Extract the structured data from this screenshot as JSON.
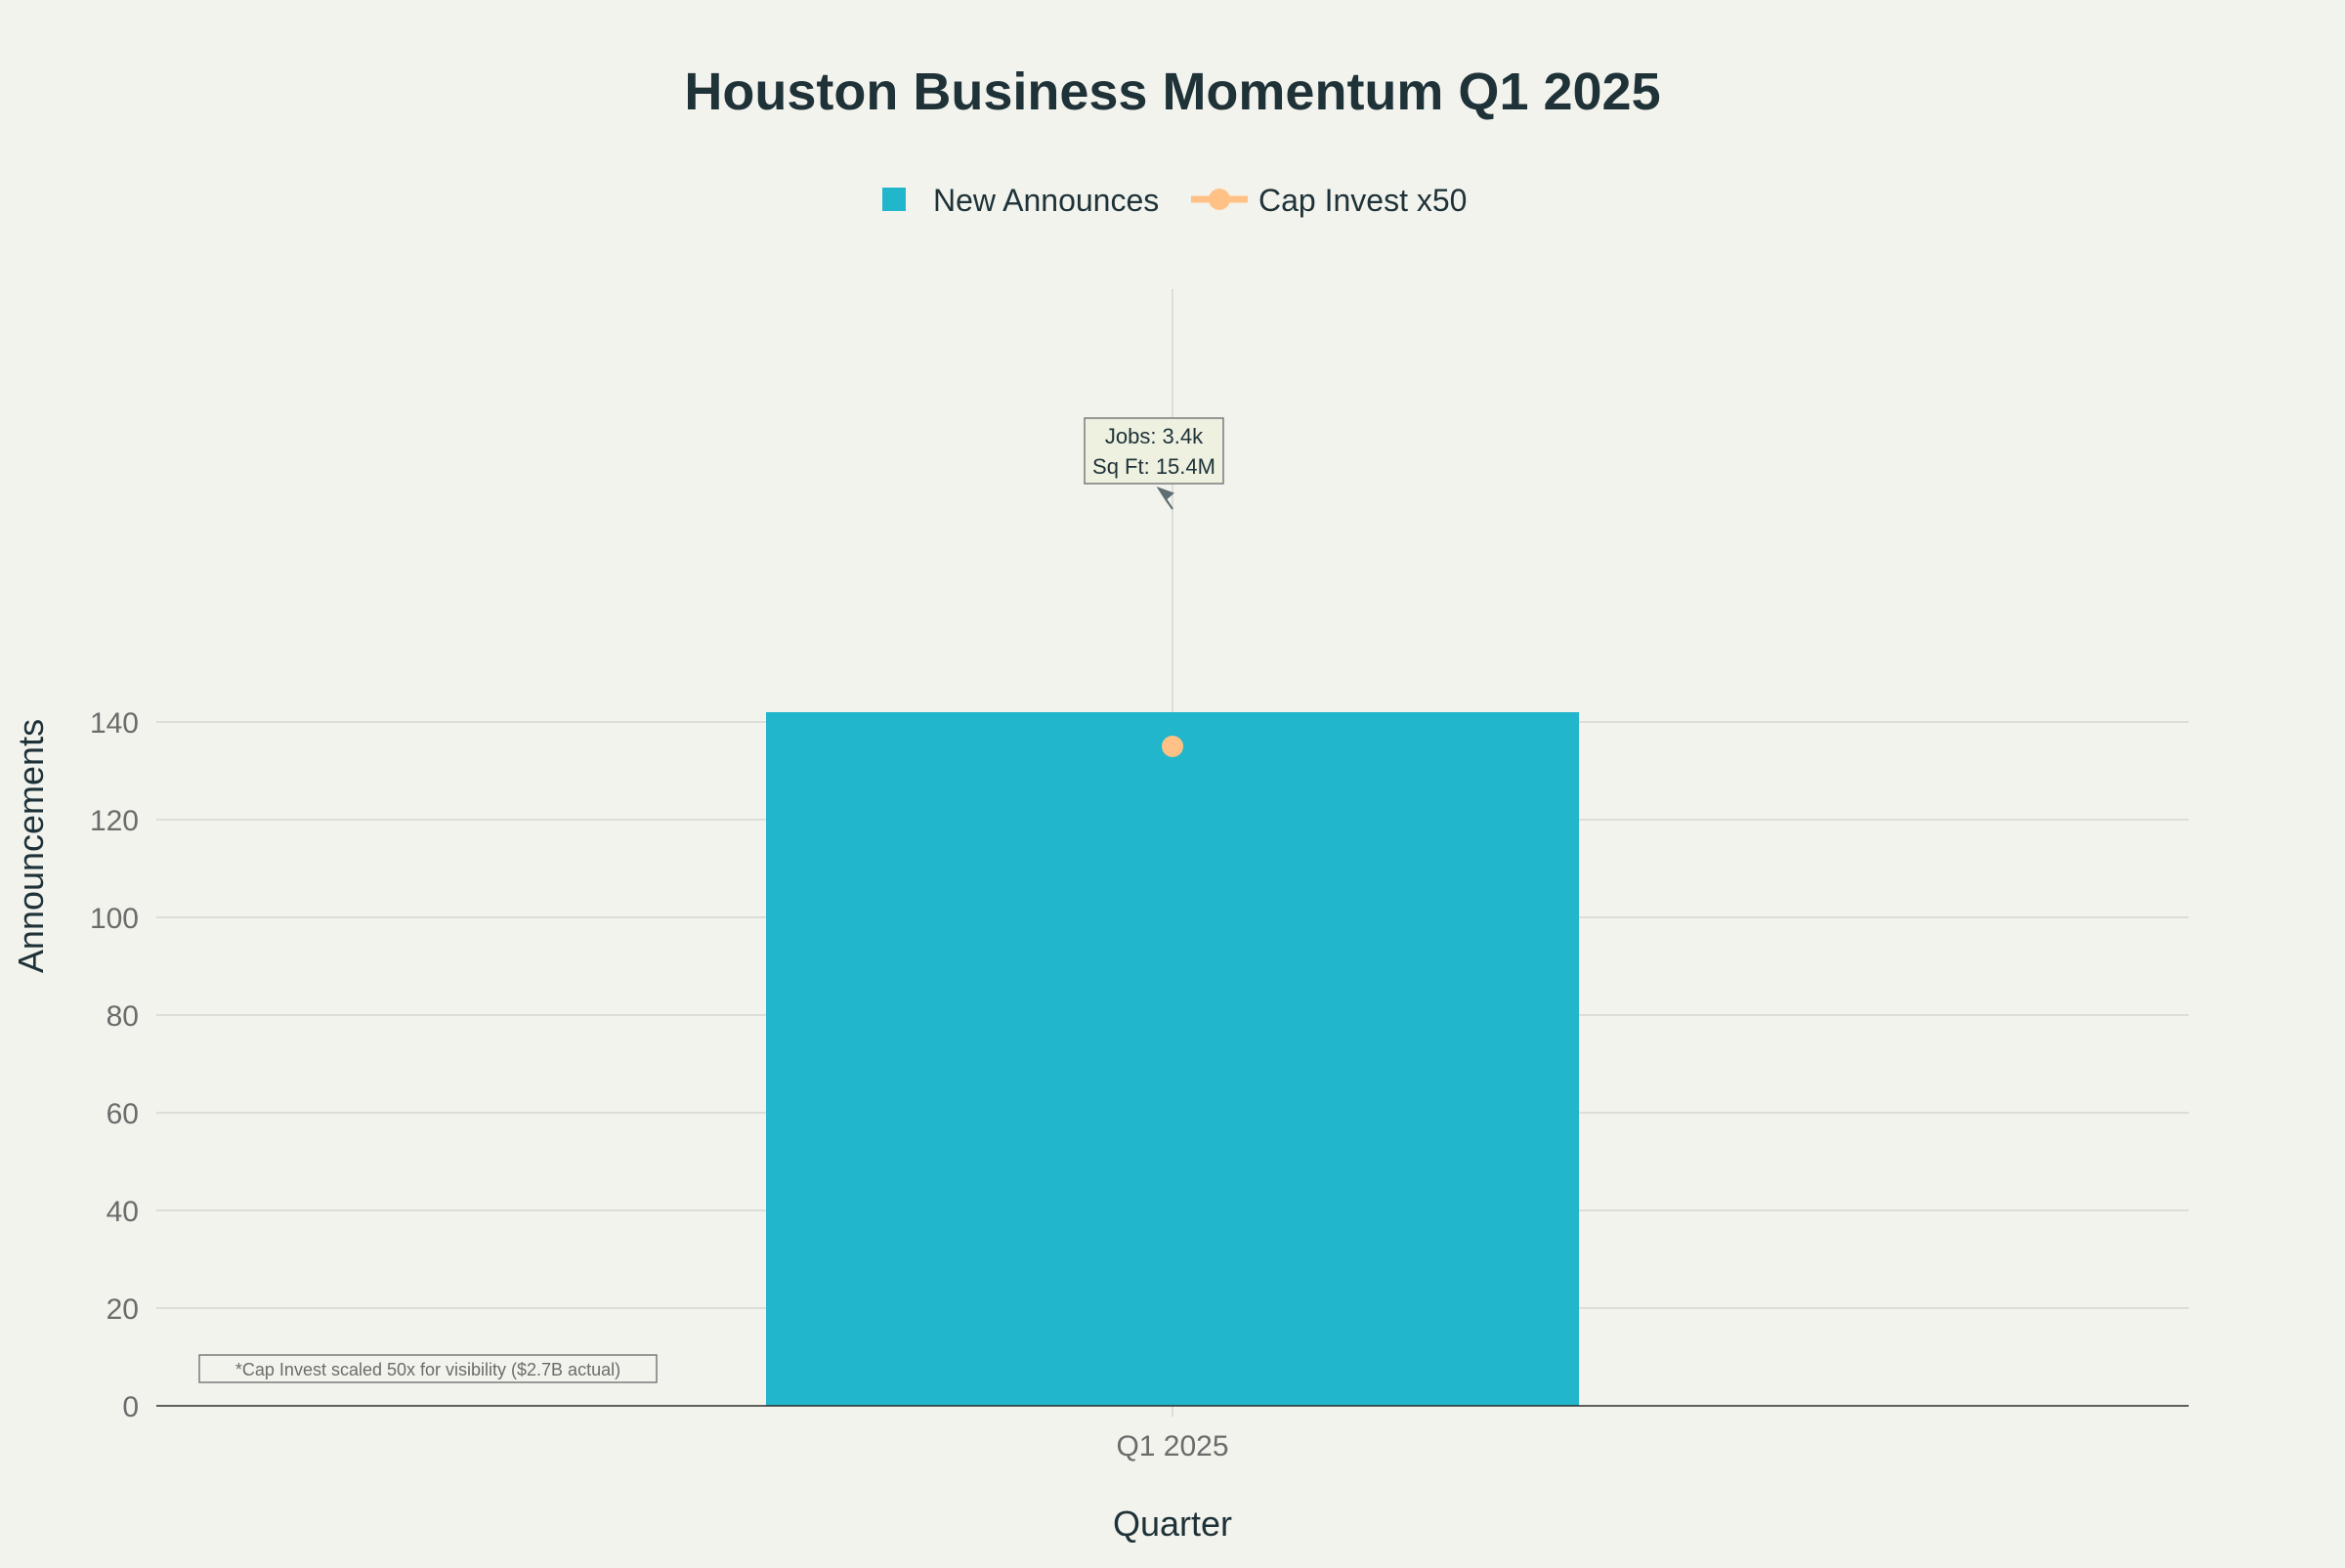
{
  "chart_data": {
    "type": "bar",
    "title": "Houston Business Momentum Q1 2025",
    "xlabel": "Quarter",
    "ylabel": "Announcements",
    "categories": [
      "Q1 2025"
    ],
    "ylim": [
      0,
      150
    ],
    "yticks": [
      0,
      20,
      40,
      60,
      80,
      100,
      120,
      140
    ],
    "grid": true,
    "legend_position": "top-center",
    "series": [
      {
        "name": "New Announces",
        "type": "bar",
        "values": [
          142
        ],
        "color": "#21b6cb"
      },
      {
        "name": "Cap Invest x50",
        "type": "line+markers",
        "values": [
          135
        ],
        "color": "#ffc185"
      }
    ],
    "annotations": [
      {
        "text_lines": [
          "Jobs: 3.4k",
          "Sq Ft: 15.4M"
        ],
        "x": "Q1 2025",
        "y": 120,
        "arrow": true
      }
    ],
    "footnote": "*Cap Invest scaled 50x for visibility ($2.7B actual)"
  },
  "colors": {
    "background": "#f3f3ee",
    "grid": "#d6d6d0",
    "axis": "#2c2c2c",
    "tick_text": "#6b6b6b",
    "title_text": "#1e3238",
    "label_text": "#1e3238",
    "annotation_bg": "#eef0e0",
    "annotation_border": "#7a7a7a",
    "arrow": "#5e6e72"
  }
}
